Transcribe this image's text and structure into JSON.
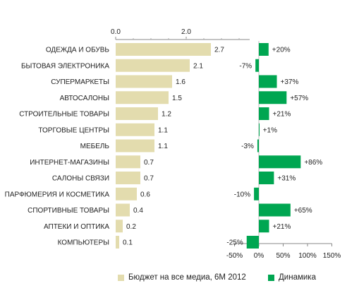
{
  "chart_data": {
    "type": "bar",
    "categories": [
      "ОДЕЖДА И ОБУВЬ",
      "БЫТОВАЯ ЭЛЕКТРОНИКА",
      "СУПЕРМАРКЕТЫ",
      "АВТОСАЛОНЫ",
      "СТРОИТЕЛЬНЫЕ ТОВАРЫ",
      "ТОРГОВЫЕ ЦЕНТРЫ",
      "МЕБЕЛЬ",
      "ИНТЕРНЕТ-МАГАЗИНЫ",
      "САЛОНЫ СВЯЗИ",
      "ПАРФЮМЕРИЯ И КОСМЕТИКА",
      "СПОРТИВНЫЕ ТОВАРЫ",
      "АПТЕКИ И ОПТИКА",
      "КОМПЬЮТЕРЫ"
    ],
    "budget": {
      "name": "Бюджет на все медиа, 6М 2012",
      "color": "#e3dcae",
      "values": [
        2.7,
        2.1,
        1.6,
        1.5,
        1.2,
        1.1,
        1.1,
        0.7,
        0.7,
        0.6,
        0.4,
        0.2,
        0.1
      ],
      "labels": [
        "2.7",
        "2.1",
        "1.6",
        "1.5",
        "1.2",
        "1.1",
        "1.1",
        "0.7",
        "0.7",
        "0.6",
        "0.4",
        "0.2",
        "0.1"
      ],
      "axis_ticks": [
        0,
        2
      ],
      "axis_tick_labels": [
        "0.0",
        "2.0"
      ],
      "xlim": [
        0,
        3.8
      ]
    },
    "dynamics": {
      "name": "Динамика",
      "color": "#00a651",
      "values": [
        20,
        -7,
        37,
        57,
        21,
        1,
        -3,
        86,
        31,
        -10,
        65,
        21,
        -25
      ],
      "labels": [
        "+20%",
        "-7%",
        "+37%",
        "+57%",
        "+21%",
        "+1%",
        "-3%",
        "+86%",
        "+31%",
        "-10%",
        "+65%",
        "+21%",
        "-25%"
      ],
      "axis_ticks": [
        -50,
        0,
        50,
        100,
        150
      ],
      "axis_tick_labels": [
        "-50%",
        "0%",
        "50%",
        "100%",
        "150%"
      ],
      "xlim": [
        -50,
        150
      ]
    },
    "legend_position": "bottom",
    "grid": false
  }
}
